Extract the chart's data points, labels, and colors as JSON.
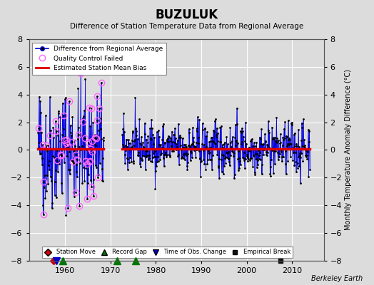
{
  "title": "BUZULUK",
  "subtitle": "Difference of Station Temperature Data from Regional Average",
  "ylabel": "Monthly Temperature Anomaly Difference (°C)",
  "xlim": [
    1952,
    2017
  ],
  "ylim": [
    -8,
    8
  ],
  "yticks": [
    -8,
    -6,
    -4,
    -2,
    0,
    2,
    4,
    6,
    8
  ],
  "xticks": [
    1960,
    1970,
    1980,
    1990,
    2000,
    2010
  ],
  "bg_color": "#dcdcdc",
  "plot_bg_color": "#dcdcdc",
  "line_color": "#0000dd",
  "bias_color": "#dd0000",
  "qc_color": "#ff66ff",
  "marker_color": "#000000",
  "station_move_color": "#cc0000",
  "record_gap_color": "#007700",
  "obs_change_color": "#0000cc",
  "empirical_break_color": "#111111",
  "bias_value": 0.1,
  "station_moves": [
    1957.5
  ],
  "record_gaps": [
    1959.5,
    1971.5,
    1975.5
  ],
  "obs_changes": [
    1958.0
  ],
  "empirical_breaks": [
    2007.5
  ],
  "data_gap_start": 1968.5,
  "data_gap_end": 1972.5,
  "start_year": 1954,
  "end_year": 2014,
  "watermark": "Berkeley Earth",
  "seed": 42
}
